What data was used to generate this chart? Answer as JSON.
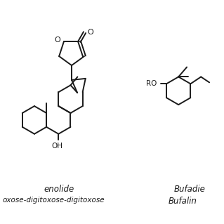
{
  "bg_color": "#ffffff",
  "line_color": "#1a1a1a",
  "lw": 1.4,
  "label1_line1": "enolide",
  "label1_line2": "oxose-digitoxose-digitoxose",
  "label2_line1": "Bufadie",
  "label2_line2": "Bufalin",
  "fontsize_label": 8.5
}
